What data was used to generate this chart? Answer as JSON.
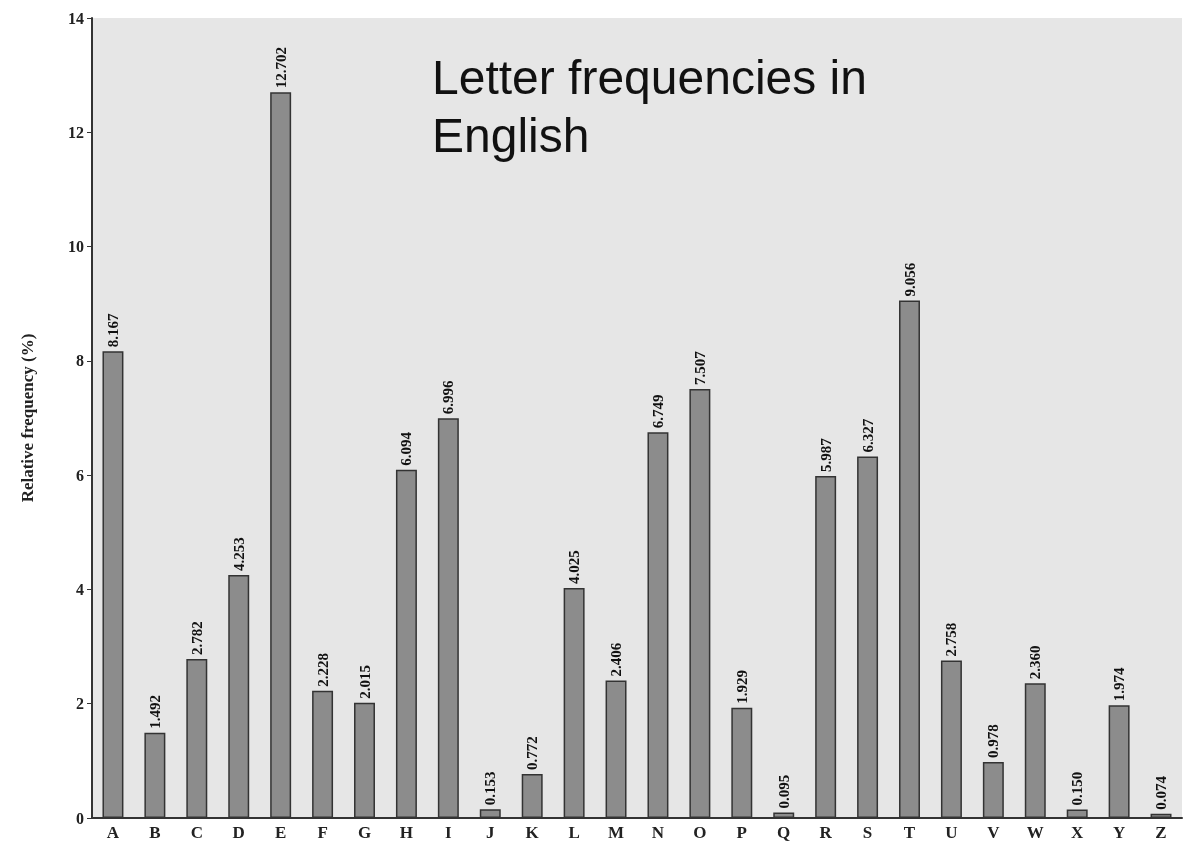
{
  "chart_data": {
    "type": "bar",
    "title": "Letter frequencies in English",
    "ylabel": "Relative frequency (%)",
    "categories": [
      "A",
      "B",
      "C",
      "D",
      "E",
      "F",
      "G",
      "H",
      "I",
      "J",
      "K",
      "L",
      "M",
      "N",
      "O",
      "P",
      "Q",
      "R",
      "S",
      "T",
      "U",
      "V",
      "W",
      "X",
      "Y",
      "Z"
    ],
    "values": [
      8.167,
      1.492,
      2.782,
      4.253,
      12.702,
      2.228,
      2.015,
      6.094,
      6.996,
      0.153,
      0.772,
      4.025,
      2.406,
      6.749,
      7.507,
      1.929,
      0.095,
      5.987,
      6.327,
      9.056,
      2.758,
      0.978,
      2.36,
      0.15,
      1.974,
      0.074
    ],
    "value_labels": [
      "8.167",
      "1.492",
      "2.782",
      "4.253",
      "12.702",
      "2.228",
      "2.015",
      "6.094",
      "6.996",
      "0.153",
      "0.772",
      "4.025",
      "2.406",
      "6.749",
      "7.507",
      "1.929",
      "0.095",
      "5.987",
      "6.327",
      "9.056",
      "2.758",
      "0.978",
      "2.360",
      "0.150",
      "1.974",
      "0.074"
    ],
    "color": "#8c8c8c",
    "ylim": [
      0,
      14
    ],
    "yticks": [
      0,
      2,
      4,
      6,
      8,
      10,
      12,
      14
    ],
    "grid": false
  }
}
